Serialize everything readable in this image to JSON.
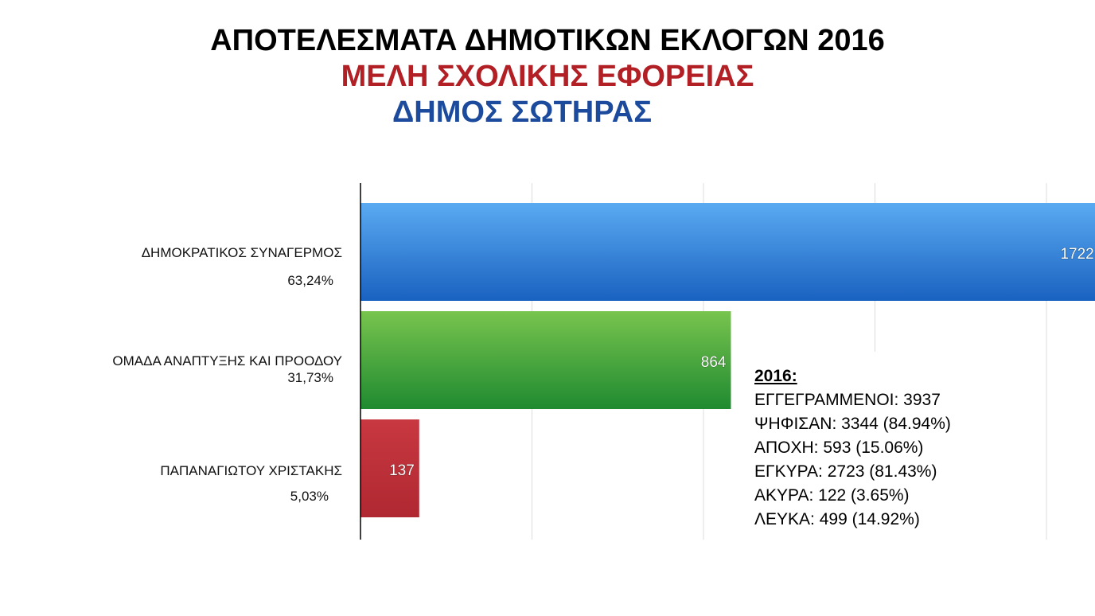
{
  "title": {
    "line1": "ΑΠΟΤΕΛΕΣΜΑΤΑ ΔΗΜΟΤΙΚΩΝ ΕΚΛΟΓΩΝ 2016",
    "line2": "ΜΕΛΗ ΣΧΟΛΙΚΗΣ ΕΦΟΡΕΙΑΣ",
    "line3": "ΔΗΜΟΣ ΣΩΤΗΡΑΣ"
  },
  "colors": {
    "title_red": "#b22026",
    "title_blue": "#1c4a9c",
    "bar_blue": "#2f7fd8",
    "bar_green": "#3ca83c",
    "bar_red": "#c0313a"
  },
  "chart_data": {
    "type": "bar",
    "orientation": "horizontal",
    "categories": [
      "ΔΗΜΟΚΡΑΤΙΚΟΣ ΣΥΝΑΓΕΡΜΟΣ",
      "ΟΜΑΔΑ ΑΝΑΠΤΥΞΗΣ ΚΑΙ ΠΡΟΟΔΟΥ",
      "ΠΑΠΑΝΑΓΙΩΤΟΥ ΧΡΙΣΤΑΚΗΣ"
    ],
    "percentages": [
      "63,24%",
      "31,73%",
      "5,03%"
    ],
    "values": [
      1722,
      864,
      137
    ],
    "xlim": [
      0,
      2000
    ],
    "grid": true
  },
  "stats": {
    "heading": "2016:",
    "lines": [
      "ΕΓΓΕΓΡΑΜΜΕΝΟΙ: 3937",
      "ΨΗΦΙΣΑΝ: 3344 (84.94%)",
      "ΑΠΟΧΗ: 593 (15.06%)",
      "ΕΓΚΥΡΑ: 2723 (81.43%)",
      "ΑΚΥΡΑ: 122 (3.65%)",
      "ΛΕΥΚΑ: 499 (14.92%)"
    ]
  }
}
